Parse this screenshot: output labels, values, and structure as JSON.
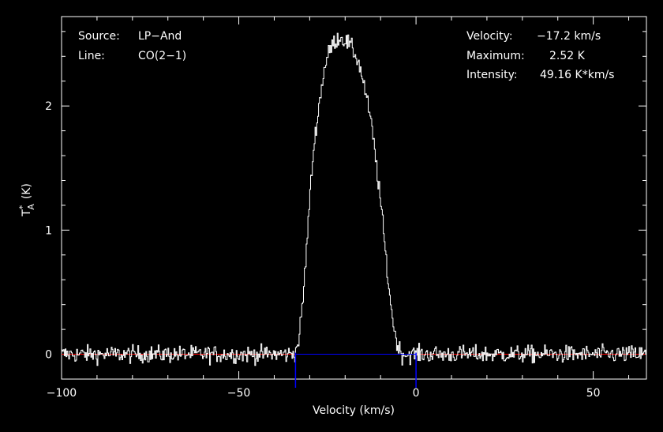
{
  "chart_data": {
    "type": "line",
    "title": "",
    "xlabel": "Velocity (km/s)",
    "ylabel": "T*A (K)",
    "ylabel_parts": {
      "main": "T",
      "sup": "*",
      "sub": "A",
      "unit": "(K)"
    },
    "xlim": [
      -100,
      65
    ],
    "ylim": [
      -0.2,
      2.72
    ],
    "x_ticks": [
      -100,
      -50,
      0,
      50
    ],
    "x_tick_labels": [
      "−100",
      "−50",
      "0",
      "50"
    ],
    "y_ticks": [
      0,
      1,
      2
    ],
    "y_tick_labels": [
      "0",
      "1",
      "2"
    ],
    "grid": false,
    "annotations_left": [
      {
        "key": "Source:",
        "value": "LP−And"
      },
      {
        "key": "Line:",
        "value": "CO(2−1)"
      }
    ],
    "annotations_right": [
      {
        "key": "Velocity:",
        "value": "−17.2 km/s"
      },
      {
        "key": "Maximum:",
        "value": "2.52 K"
      },
      {
        "key": "Intensity:",
        "value": "49.16 K*km/s"
      }
    ],
    "series": [
      {
        "x": [
          -100,
          -95,
          -90,
          -85,
          -80,
          -75,
          -70,
          -65,
          -60,
          -55,
          -50,
          -45,
          -40,
          -36,
          -34,
          -33,
          -32,
          -31,
          -30,
          -29,
          -28,
          -27,
          -26,
          -25,
          -24,
          -23,
          -22,
          -21,
          -20,
          -19,
          -18,
          -17,
          -16,
          -15,
          -14,
          -13,
          -12,
          -11,
          -10,
          -9,
          -8,
          -7,
          -6,
          -5,
          -4,
          -3,
          -2,
          0,
          5,
          10,
          15,
          20,
          25,
          30,
          35,
          40,
          45,
          50,
          55,
          60,
          65
        ],
        "y": [
          0.0,
          0.0,
          0.0,
          0.0,
          0.0,
          0.0,
          0.0,
          0.0,
          0.0,
          0.0,
          0.0,
          0.0,
          0.0,
          0.0,
          0.02,
          0.15,
          0.45,
          0.85,
          1.3,
          1.65,
          1.9,
          2.1,
          2.3,
          2.4,
          2.48,
          2.52,
          2.55,
          2.55,
          2.52,
          2.5,
          2.45,
          2.4,
          2.32,
          2.2,
          2.05,
          1.9,
          1.7,
          1.45,
          1.2,
          0.9,
          0.6,
          0.35,
          0.15,
          0.05,
          0.0,
          0.0,
          0.0,
          0.0,
          0.0,
          0.0,
          0.0,
          0.0,
          0.0,
          0.0,
          0.0,
          0.0,
          0.0,
          0.0,
          0.0,
          0.0,
          0.0
        ],
        "color": "#ffffff",
        "noise_amplitude_K": 0.07
      }
    ],
    "baseline": {
      "y": 0.0,
      "color": "#ff0000"
    },
    "integration_window": {
      "x": [
        -34,
        0
      ],
      "y": 0.0,
      "color": "#0000ff"
    }
  }
}
